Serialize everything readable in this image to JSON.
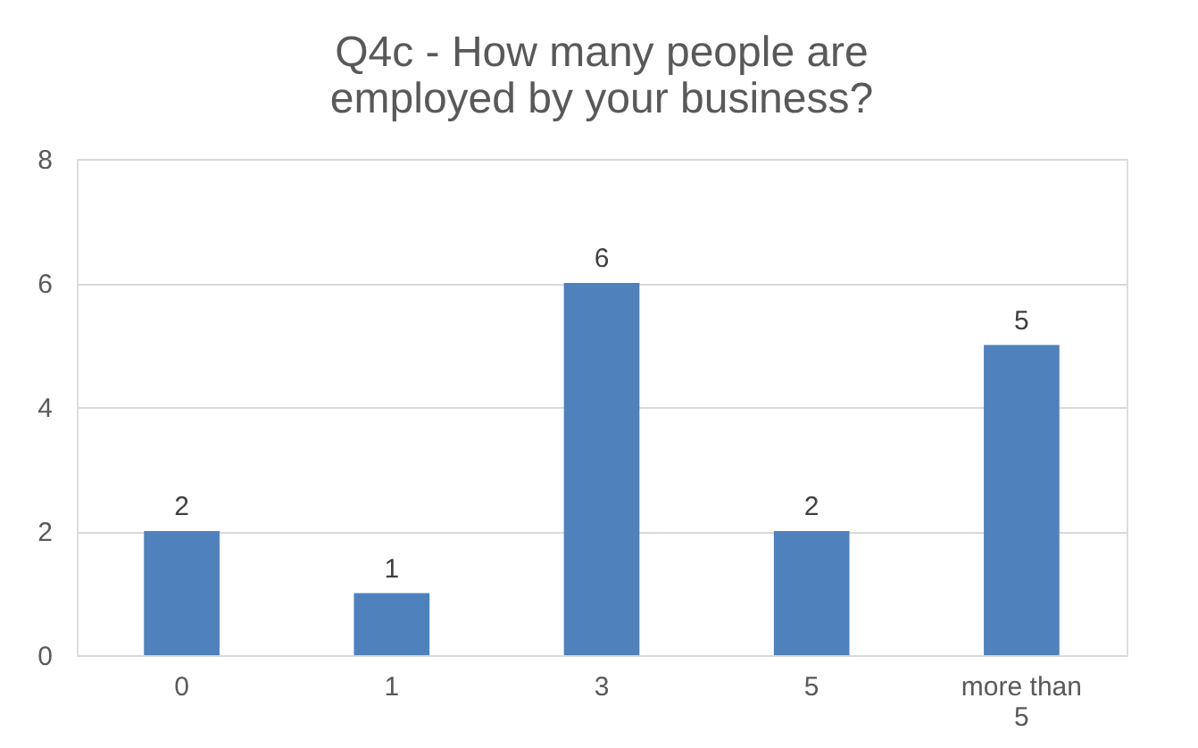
{
  "chart_data": {
    "type": "bar",
    "title": [
      "Q4c - How many people are",
      "employed by your business?"
    ],
    "categories": [
      "0",
      "1",
      "3",
      "5",
      "more than 5"
    ],
    "values": [
      2,
      1,
      6,
      2,
      5
    ],
    "color": "#4f81bd",
    "ylim": [
      0,
      8
    ],
    "yticks": [
      0,
      2,
      4,
      6,
      8
    ],
    "grid": "y",
    "data_labels": true
  }
}
